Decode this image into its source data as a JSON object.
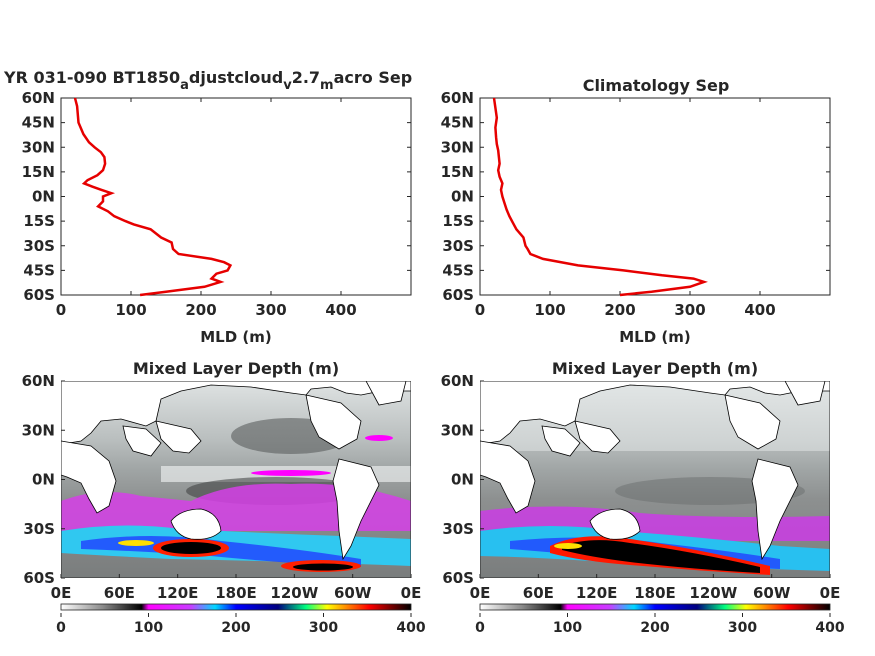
{
  "chart_data": [
    {
      "type": "line",
      "title": "YR 031-090 BT1850",
      "title_parts": [
        "a",
        "djustcloud",
        "v",
        "2.7",
        "m",
        "acro Sep"
      ],
      "xlabel": "MLD (m)",
      "ylabel": "",
      "xlim": [
        0,
        500
      ],
      "ylim": [
        -60,
        60
      ],
      "xticks": [
        "0",
        "100",
        "200",
        "300",
        "400"
      ],
      "yticks": [
        "60N",
        "45N",
        "30N",
        "15N",
        "0N",
        "15S",
        "30S",
        "45S",
        "60S"
      ],
      "color": "#e60000",
      "series": [
        {
          "x": [
            113,
            150,
            205,
            228,
            215,
            222,
            238,
            242,
            233,
            215,
            168,
            160,
            158,
            143,
            128,
            104,
            92,
            76,
            67,
            53,
            60,
            60,
            72,
            58,
            45,
            33,
            38,
            52,
            60,
            63,
            62,
            57,
            48,
            40,
            32,
            25,
            23,
            20
          ],
          "y": [
            -60,
            -58,
            -55,
            -52,
            -50,
            -47,
            -45,
            -42,
            -40,
            -38,
            -35,
            -32,
            -28,
            -25,
            -20,
            -17,
            -15,
            -12,
            -9,
            -6,
            -3,
            0,
            2,
            4,
            6,
            8,
            10,
            13,
            16,
            20,
            24,
            27,
            30,
            33,
            38,
            45,
            55,
            60
          ]
        }
      ]
    },
    {
      "type": "line",
      "title": "Climatology Sep",
      "xlabel": "MLD (m)",
      "ylabel": "",
      "xlim": [
        0,
        500
      ],
      "ylim": [
        -60,
        60
      ],
      "xticks": [
        "0",
        "100",
        "200",
        "300",
        "400"
      ],
      "yticks": [
        "60N",
        "45N",
        "30N",
        "15N",
        "0N",
        "15S",
        "30S",
        "45S",
        "60S"
      ],
      "color": "#e60000",
      "series": [
        {
          "x": [
            200,
            245,
            300,
            320,
            305,
            260,
            205,
            140,
            90,
            72,
            68,
            65,
            62,
            52,
            47,
            42,
            38,
            35,
            32,
            30,
            32,
            28,
            26,
            28,
            27,
            26,
            24,
            23,
            22,
            24,
            22,
            20
          ],
          "y": [
            -60,
            -58,
            -55,
            -52,
            -50,
            -48,
            -45,
            -42,
            -38,
            -35,
            -32,
            -30,
            -25,
            -20,
            -16,
            -12,
            -8,
            -4,
            0,
            4,
            8,
            12,
            16,
            20,
            24,
            28,
            32,
            36,
            42,
            48,
            54,
            60
          ]
        }
      ]
    },
    {
      "type": "heatmap",
      "title": "Mixed Layer Depth (m)",
      "xticks": [
        "0E",
        "60E",
        "120E",
        "180E",
        "120W",
        "60W",
        "0E"
      ],
      "yticks": [
        "60N",
        "30N",
        "0N",
        "30S",
        "60S"
      ],
      "colorbar_ticks": [
        "0",
        "100",
        "200",
        "300",
        "400"
      ],
      "colorbar_range": [
        0,
        400
      ],
      "colormap": [
        "#ffffff",
        "#888888",
        "#000000",
        "#ff00ff",
        "#00ffff",
        "#0000ff",
        "#00ff80",
        "#ffff00",
        "#ff0000",
        "#000000"
      ]
    },
    {
      "type": "heatmap",
      "title": "Mixed Layer Depth (m)",
      "xticks": [
        "0E",
        "60E",
        "120E",
        "180E",
        "120W",
        "60W",
        "0E"
      ],
      "yticks": [
        "60N",
        "30N",
        "0N",
        "30S",
        "60S"
      ],
      "colorbar_ticks": [
        "0",
        "100",
        "200",
        "300",
        "400"
      ],
      "colorbar_range": [
        0,
        400
      ],
      "colormap": [
        "#ffffff",
        "#888888",
        "#000000",
        "#ff00ff",
        "#00ffff",
        "#0000ff",
        "#00ff80",
        "#ffff00",
        "#ff0000",
        "#000000"
      ]
    }
  ]
}
